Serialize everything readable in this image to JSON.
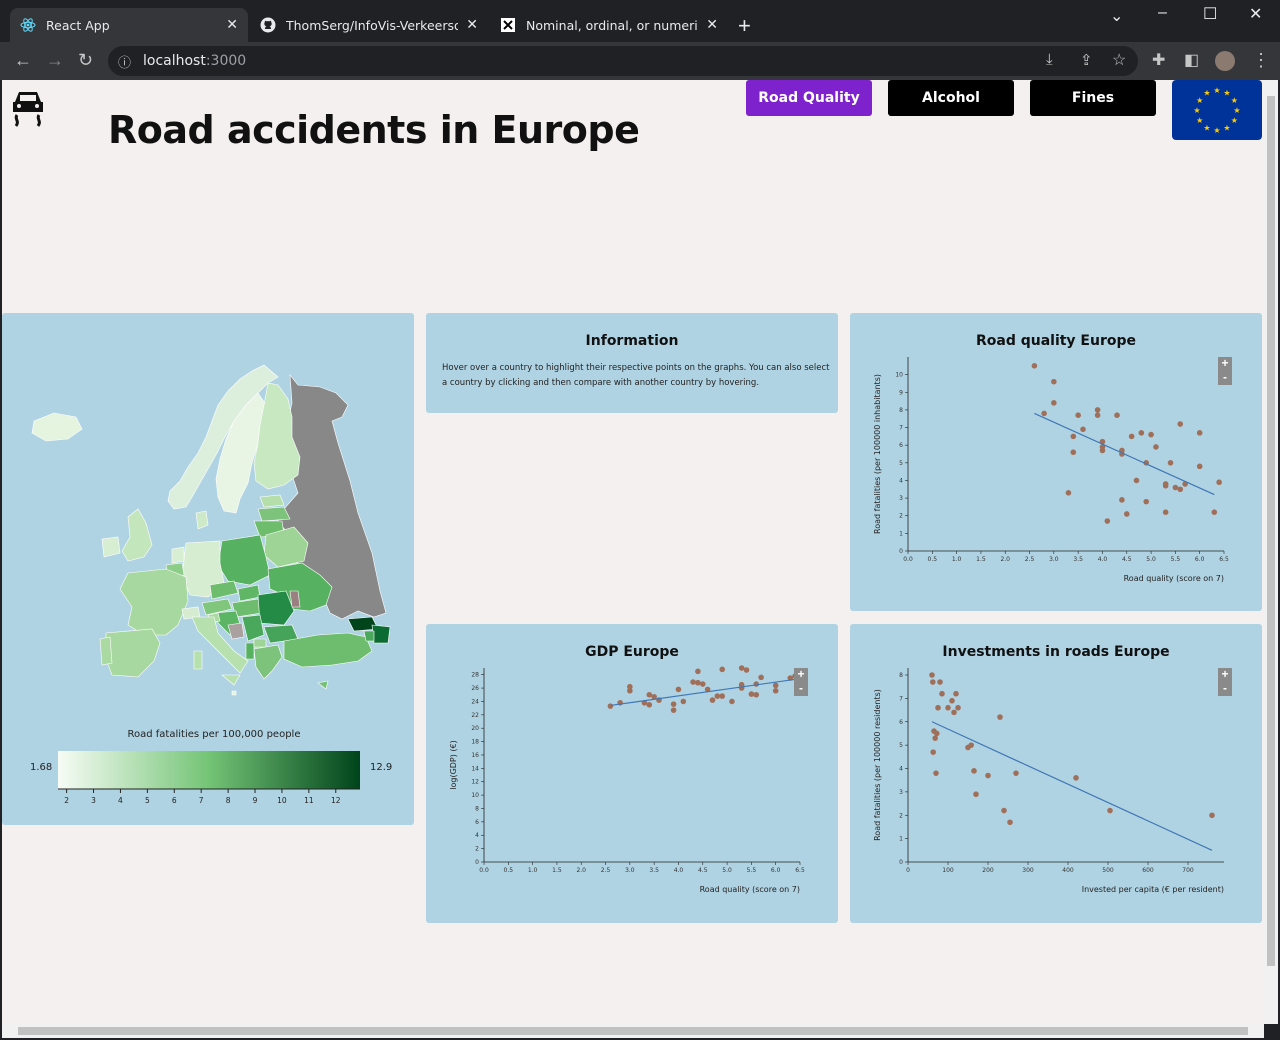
{
  "browser": {
    "tabs": [
      {
        "title": "React App",
        "active": true
      },
      {
        "title": "ThomSerg/InfoVis-Verkeersongel",
        "active": false
      },
      {
        "title": "Nominal, ordinal, or numerical va",
        "active": false
      }
    ],
    "url_host": "localhost",
    "url_port": ":3000"
  },
  "header": {
    "title": "Road accidents in Europe",
    "nav": [
      {
        "label": "Road Quality",
        "color": "#7e22ce"
      },
      {
        "label": "Alcohol",
        "color": "#000000"
      },
      {
        "label": "Fines",
        "color": "#000000"
      }
    ]
  },
  "map_panel": {
    "legend_title": "Road fatalities per 100,000 people",
    "min_label": "1.68",
    "max_label": "12.9",
    "ticks": [
      "2",
      "3",
      "4",
      "5",
      "6",
      "7",
      "8",
      "9",
      "10",
      "11",
      "12"
    ]
  },
  "info_panel": {
    "title": "Information",
    "text": "Hover over a country to highlight their respective points on the graphs. You can also select a country by clicking and then compare with another country by hovering."
  },
  "zoom": {
    "plus": "+",
    "minus": "-"
  },
  "chart_data": [
    {
      "type": "scatter",
      "title": "Road quality Europe",
      "xlabel": "Road quality (score on 7)",
      "ylabel": "Road fatalities (per 100000 inhabitants)",
      "xlim": [
        0,
        6.5
      ],
      "ylim": [
        0,
        11
      ],
      "xticks": [
        "0.0",
        "0.5",
        "1.0",
        "1.5",
        "2.0",
        "2.5",
        "3.0",
        "3.5",
        "4.0",
        "4.5",
        "5.0",
        "5.5",
        "6.0",
        "6.5"
      ],
      "yticks": [
        "0",
        "1",
        "2",
        "3",
        "4",
        "5",
        "6",
        "7",
        "8",
        "9",
        "10"
      ],
      "trendline": [
        [
          2.6,
          7.8
        ],
        [
          6.3,
          3.2
        ]
      ],
      "points": [
        [
          2.6,
          10.5
        ],
        [
          2.8,
          7.8
        ],
        [
          3.0,
          9.6
        ],
        [
          3.0,
          8.4
        ],
        [
          3.3,
          3.3
        ],
        [
          3.4,
          6.5
        ],
        [
          3.4,
          5.6
        ],
        [
          3.5,
          7.7
        ],
        [
          3.6,
          6.9
        ],
        [
          3.9,
          8.0
        ],
        [
          3.9,
          7.7
        ],
        [
          4.0,
          6.2
        ],
        [
          4.0,
          5.9
        ],
        [
          4.0,
          5.7
        ],
        [
          4.1,
          1.7
        ],
        [
          4.3,
          7.7
        ],
        [
          4.4,
          5.7
        ],
        [
          4.4,
          5.5
        ],
        [
          4.4,
          2.9
        ],
        [
          4.5,
          2.1
        ],
        [
          4.6,
          6.5
        ],
        [
          4.7,
          4.0
        ],
        [
          4.8,
          6.7
        ],
        [
          4.9,
          5.0
        ],
        [
          4.9,
          2.8
        ],
        [
          5.0,
          6.6
        ],
        [
          5.1,
          5.9
        ],
        [
          5.3,
          3.8
        ],
        [
          5.3,
          3.7
        ],
        [
          5.3,
          2.2
        ],
        [
          5.4,
          5.0
        ],
        [
          5.5,
          3.6
        ],
        [
          5.6,
          3.5
        ],
        [
          5.6,
          7.2
        ],
        [
          5.7,
          3.8
        ],
        [
          6.0,
          6.7
        ],
        [
          6.0,
          4.8
        ],
        [
          6.3,
          2.2
        ],
        [
          6.4,
          3.9
        ]
      ]
    },
    {
      "type": "scatter",
      "title": "GDP Europe",
      "xlabel": "Road quality (score on 7)",
      "ylabel": "log(GDP) (€)",
      "xlim": [
        0,
        6.5
      ],
      "ylim": [
        0,
        29
      ],
      "xticks": [
        "0.0",
        "0.5",
        "1.0",
        "1.5",
        "2.0",
        "2.5",
        "3.0",
        "3.5",
        "4.0",
        "4.5",
        "5.0",
        "5.5",
        "6.0",
        "6.5"
      ],
      "yticks": [
        "0",
        "2",
        "4",
        "6",
        "8",
        "10",
        "12",
        "14",
        "16",
        "18",
        "20",
        "22",
        "24",
        "26",
        "28"
      ],
      "trendline": [
        [
          2.6,
          23.4
        ],
        [
          6.5,
          27.4
        ]
      ],
      "points": [
        [
          2.6,
          23.3
        ],
        [
          2.8,
          23.8
        ],
        [
          3.0,
          26.2
        ],
        [
          3.0,
          25.6
        ],
        [
          3.3,
          23.8
        ],
        [
          3.4,
          25.0
        ],
        [
          3.4,
          23.5
        ],
        [
          3.5,
          24.7
        ],
        [
          3.6,
          24.2
        ],
        [
          3.9,
          23.6
        ],
        [
          3.9,
          22.7
        ],
        [
          4.0,
          25.8
        ],
        [
          4.1,
          24.0
        ],
        [
          4.3,
          26.9
        ],
        [
          4.4,
          28.5
        ],
        [
          4.4,
          26.8
        ],
        [
          4.5,
          26.6
        ],
        [
          4.6,
          25.8
        ],
        [
          4.7,
          24.2
        ],
        [
          4.8,
          24.8
        ],
        [
          4.9,
          28.8
        ],
        [
          4.9,
          24.8
        ],
        [
          5.1,
          24.0
        ],
        [
          5.3,
          29.0
        ],
        [
          5.3,
          26.5
        ],
        [
          5.3,
          26.0
        ],
        [
          5.4,
          28.7
        ],
        [
          5.5,
          25.1
        ],
        [
          5.6,
          25.0
        ],
        [
          5.6,
          26.6
        ],
        [
          5.7,
          27.6
        ],
        [
          6.0,
          26.4
        ],
        [
          6.0,
          25.6
        ],
        [
          6.3,
          27.5
        ],
        [
          6.4,
          27.8
        ]
      ]
    },
    {
      "type": "scatter",
      "title": "Investments in roads Europe",
      "xlabel": "Invested per capita (€ per resident)",
      "ylabel": "Road fatalities (per 100000 residents)",
      "xlim": [
        0,
        790
      ],
      "ylim": [
        0,
        8.3
      ],
      "xticks": [
        "0",
        "100",
        "200",
        "300",
        "400",
        "500",
        "600",
        "700"
      ],
      "yticks": [
        "0",
        "1",
        "2",
        "3",
        "4",
        "5",
        "6",
        "7",
        "8"
      ],
      "trendline": [
        [
          60,
          6.0
        ],
        [
          760,
          0.5
        ]
      ],
      "points": [
        [
          60,
          8.0
        ],
        [
          62,
          7.7
        ],
        [
          63,
          4.7
        ],
        [
          65,
          5.6
        ],
        [
          68,
          5.3
        ],
        [
          70,
          3.8
        ],
        [
          72,
          5.5
        ],
        [
          75,
          6.6
        ],
        [
          80,
          7.7
        ],
        [
          85,
          7.2
        ],
        [
          100,
          6.6
        ],
        [
          110,
          6.9
        ],
        [
          115,
          6.4
        ],
        [
          120,
          7.2
        ],
        [
          125,
          6.6
        ],
        [
          150,
          4.9
        ],
        [
          158,
          5.0
        ],
        [
          165,
          3.9
        ],
        [
          170,
          2.9
        ],
        [
          200,
          3.7
        ],
        [
          230,
          6.2
        ],
        [
          240,
          2.2
        ],
        [
          255,
          1.7
        ],
        [
          270,
          3.8
        ],
        [
          420,
          3.6
        ],
        [
          505,
          2.2
        ],
        [
          760,
          2.0
        ]
      ]
    }
  ]
}
